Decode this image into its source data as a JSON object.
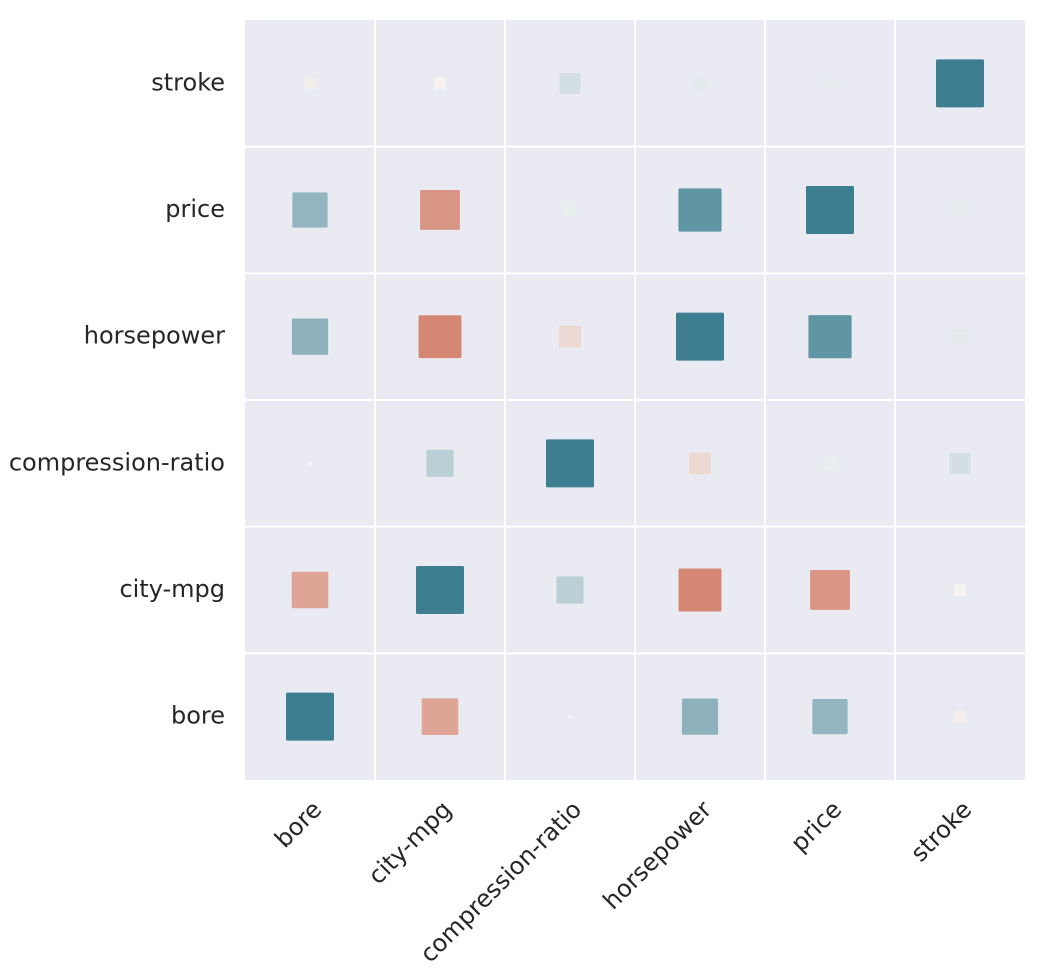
{
  "chart_data": {
    "type": "heatmap",
    "title": "",
    "xlabel": "",
    "ylabel": "",
    "x_categories": [
      "bore",
      "city-mpg",
      "compression-ratio",
      "horsepower",
      "price",
      "stroke"
    ],
    "y_categories": [
      "stroke",
      "price",
      "horsepower",
      "compression-ratio",
      "city-mpg",
      "bore"
    ],
    "value_range": [
      -1,
      1
    ],
    "cells": [
      {
        "x": "bore",
        "y": "stroke",
        "value": -0.06
      },
      {
        "x": "city-mpg",
        "y": "stroke",
        "value": -0.03
      },
      {
        "x": "compression-ratio",
        "y": "stroke",
        "value": 0.19
      },
      {
        "x": "horsepower",
        "y": "stroke",
        "value": 0.1
      },
      {
        "x": "price",
        "y": "stroke",
        "value": 0.08
      },
      {
        "x": "stroke",
        "y": "stroke",
        "value": 1.0
      },
      {
        "x": "bore",
        "y": "price",
        "value": 0.54
      },
      {
        "x": "city-mpg",
        "y": "price",
        "value": -0.69
      },
      {
        "x": "compression-ratio",
        "y": "price",
        "value": 0.07
      },
      {
        "x": "horsepower",
        "y": "price",
        "value": 0.81
      },
      {
        "x": "price",
        "y": "price",
        "value": 1.0
      },
      {
        "x": "stroke",
        "y": "price",
        "value": 0.08
      },
      {
        "x": "bore",
        "y": "horsepower",
        "value": 0.57
      },
      {
        "x": "city-mpg",
        "y": "horsepower",
        "value": -0.8
      },
      {
        "x": "compression-ratio",
        "y": "horsepower",
        "value": -0.21
      },
      {
        "x": "horsepower",
        "y": "horsepower",
        "value": 1.0
      },
      {
        "x": "price",
        "y": "horsepower",
        "value": 0.81
      },
      {
        "x": "stroke",
        "y": "horsepower",
        "value": 0.1
      },
      {
        "x": "bore",
        "y": "compression-ratio",
        "value": 0.0
      },
      {
        "x": "city-mpg",
        "y": "compression-ratio",
        "value": 0.32
      },
      {
        "x": "compression-ratio",
        "y": "compression-ratio",
        "value": 1.0
      },
      {
        "x": "horsepower",
        "y": "compression-ratio",
        "value": -0.21
      },
      {
        "x": "price",
        "y": "compression-ratio",
        "value": 0.07
      },
      {
        "x": "stroke",
        "y": "compression-ratio",
        "value": 0.19
      },
      {
        "x": "bore",
        "y": "city-mpg",
        "value": -0.58
      },
      {
        "x": "city-mpg",
        "y": "city-mpg",
        "value": 1.0
      },
      {
        "x": "compression-ratio",
        "y": "city-mpg",
        "value": 0.32
      },
      {
        "x": "horsepower",
        "y": "city-mpg",
        "value": -0.8
      },
      {
        "x": "price",
        "y": "city-mpg",
        "value": -0.69
      },
      {
        "x": "stroke",
        "y": "city-mpg",
        "value": -0.03
      },
      {
        "x": "bore",
        "y": "bore",
        "value": 1.0
      },
      {
        "x": "city-mpg",
        "y": "bore",
        "value": -0.58
      },
      {
        "x": "compression-ratio",
        "y": "bore",
        "value": 0.0
      },
      {
        "x": "horsepower",
        "y": "bore",
        "value": 0.57
      },
      {
        "x": "price",
        "y": "bore",
        "value": 0.54
      },
      {
        "x": "stroke",
        "y": "bore",
        "value": -0.06
      }
    ],
    "grid": true,
    "palette": {
      "negative": "#cc6b52",
      "neutral": "#eaeaf2",
      "positive": "#3d7e91",
      "background": "#eaeaf2",
      "grid": "#ffffff",
      "text": "#262626"
    }
  }
}
